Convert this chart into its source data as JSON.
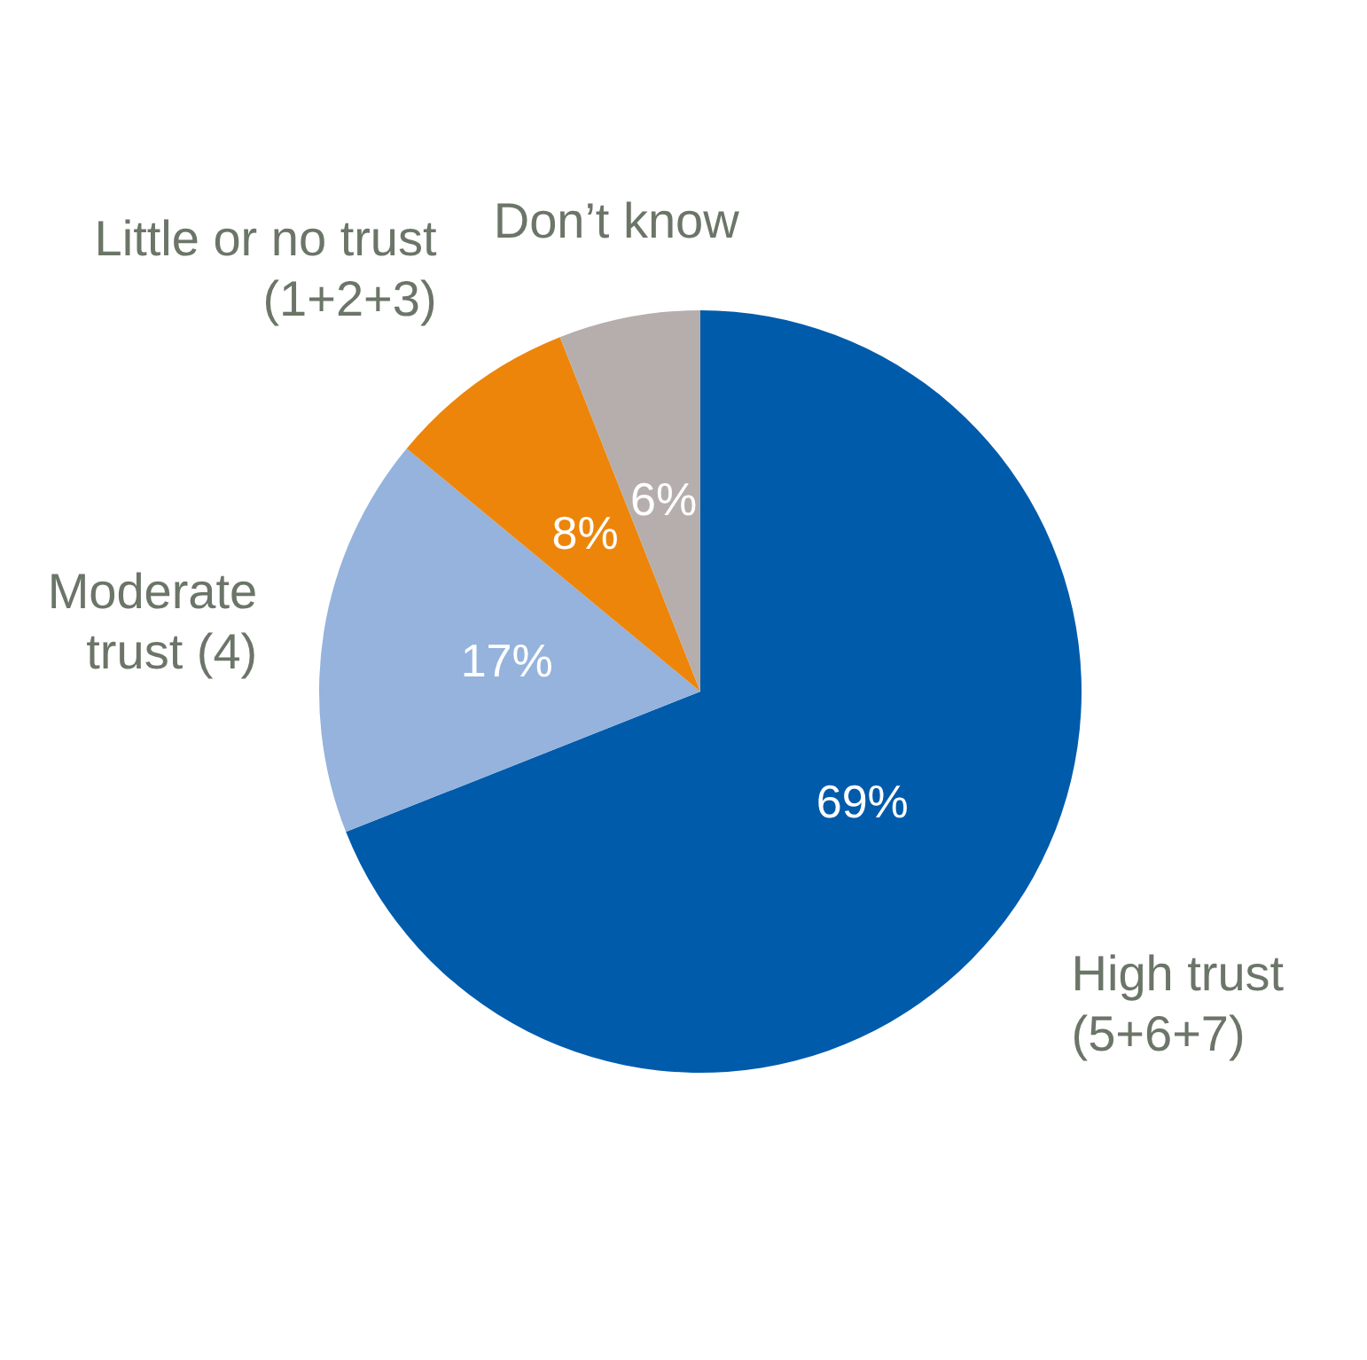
{
  "chart_data": {
    "type": "pie",
    "categories": [
      "High trust\n(5+6+7)",
      "Moderate\ntrust (4)",
      "Little or no trust\n(1+2+3)",
      "Don’t know"
    ],
    "values": [
      69,
      17,
      8,
      6
    ],
    "colors": [
      "#005bab",
      "#95b3dc",
      "#ed850a",
      "#b5aeac"
    ],
    "value_labels": [
      "69%",
      "17%",
      "8%",
      "6%"
    ]
  }
}
